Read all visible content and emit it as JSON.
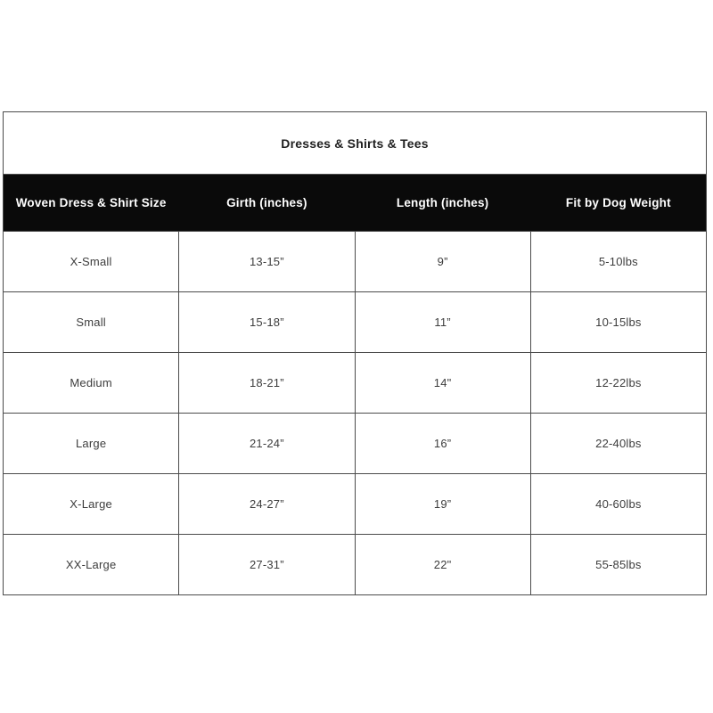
{
  "chart_data": {
    "type": "table",
    "title": "Dresses & Shirts & Tees",
    "columns": [
      "Woven Dress & Shirt Size",
      "Girth (inches)",
      "Length (inches)",
      "Fit by Dog Weight"
    ],
    "rows": [
      {
        "size": "X-Small",
        "girth": "13-15”",
        "length": "9”",
        "weight": "5-10lbs"
      },
      {
        "size": "Small",
        "girth": "15-18”",
        "length": "11”",
        "weight": "10-15lbs"
      },
      {
        "size": "Medium",
        "girth": "18-21”",
        "length": "14\"",
        "weight": "12-22lbs"
      },
      {
        "size": "Large",
        "girth": "21-24”",
        "length": "16”",
        "weight": "22-40lbs"
      },
      {
        "size": "X-Large",
        "girth": "24-27”",
        "length": "19”",
        "weight": "40-60lbs"
      },
      {
        "size": "XX-Large",
        "girth": "27-31”",
        "length": "22\"",
        "weight": "55-85lbs"
      }
    ],
    "layout": {
      "grid": true,
      "column_count": 4,
      "row_count": 6,
      "title_position": "top-center-merged-cell",
      "header_style": "black-band-white-bold-text"
    },
    "colors": {
      "page_bg": "#ffffff",
      "header_bg": "#0a0a0a",
      "header_text": "#ffffff",
      "border": "#4b4b4b",
      "body_text": "#3d3d3d",
      "title_text": "#1f1f1f"
    }
  }
}
